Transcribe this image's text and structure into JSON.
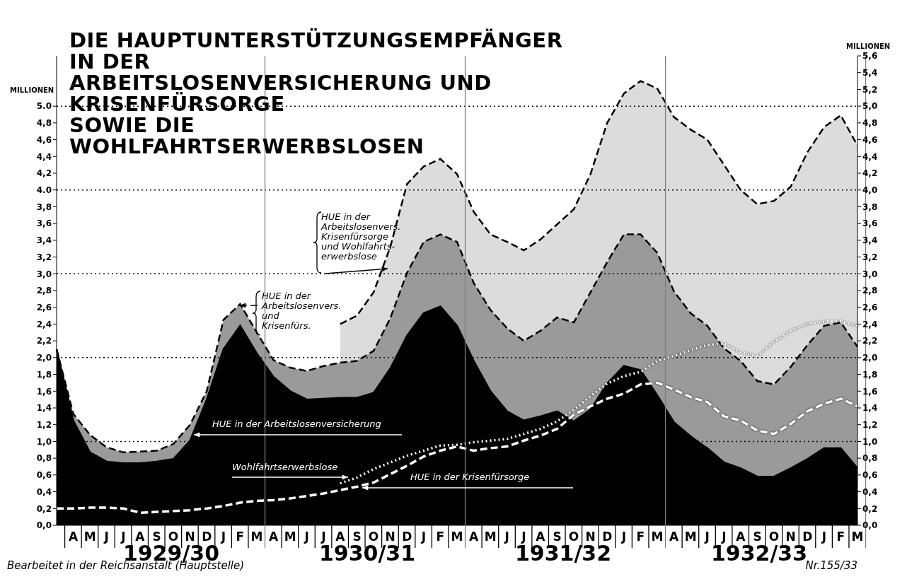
{
  "chart_data": {
    "type": "area",
    "title": "DIE HAUPTUNTERSTÜTZUNGSEMPFÄNGER\nIN DER\nARBEITSLOSENVERSICHERUNG UND\nKRISENFÜRSORGE\nSOWIE DIE\nWOHLFAHRTSERWERBSLOSEN",
    "ylabel": "MILLIONEN",
    "y2label": "MILLIONEN",
    "categories": [
      null,
      "A",
      "M",
      "J",
      "J",
      "A",
      "S",
      "O",
      "N",
      "D",
      "J",
      "F",
      "M",
      "A",
      "M",
      "J",
      "J",
      "A",
      "S",
      "O",
      "N",
      "D",
      "J",
      "F",
      "M",
      "A",
      "M",
      "J",
      "J",
      "A",
      "S",
      "O",
      "N",
      "D",
      "J",
      "F",
      "M",
      "A",
      "M",
      "J",
      "J",
      "A",
      "S",
      "O",
      "N",
      "D",
      "J",
      "F",
      "M"
    ],
    "series": [
      {
        "name": "HUE in der Arbeitslosenvers. Krisenfürsorge und Wohlfahrts-erwerbslose",
        "color": "#dcdcdc",
        "line_style": "dashed",
        "values": [
          null,
          null,
          null,
          null,
          null,
          null,
          null,
          null,
          null,
          null,
          null,
          null,
          null,
          null,
          null,
          null,
          null,
          2.4,
          2.5,
          2.78,
          3.32,
          4.07,
          4.28,
          4.37,
          4.19,
          3.74,
          3.47,
          3.38,
          3.28,
          3.41,
          3.59,
          3.77,
          4.19,
          4.8,
          5.15,
          5.3,
          5.21,
          4.87,
          4.72,
          4.6,
          4.3,
          4.0,
          3.83,
          3.87,
          4.04,
          4.45,
          4.75,
          4.89,
          4.53
        ]
      },
      {
        "name": "HUE in der Arbeitslosenvers. und Krisenfürs.",
        "color": "#9a9a9a",
        "line_style": "dashed",
        "values": [
          2.1,
          1.33,
          1.08,
          0.93,
          0.87,
          0.88,
          0.89,
          0.97,
          1.2,
          1.6,
          2.45,
          2.64,
          2.3,
          1.97,
          1.88,
          1.84,
          1.9,
          1.94,
          1.96,
          2.08,
          2.47,
          3.01,
          3.38,
          3.47,
          3.38,
          2.89,
          2.57,
          2.35,
          2.2,
          2.32,
          2.48,
          2.42,
          2.78,
          3.14,
          3.47,
          3.47,
          3.25,
          2.79,
          2.53,
          2.38,
          2.11,
          1.96,
          1.72,
          1.68,
          1.89,
          2.15,
          2.38,
          2.42,
          2.13
        ]
      },
      {
        "name": "HUE in der Arbeitslosenversicherung",
        "color": "#000000",
        "line_style": "solid",
        "values": [
          2.1,
          1.25,
          0.87,
          0.76,
          0.74,
          0.74,
          0.76,
          0.79,
          1.01,
          1.5,
          2.1,
          2.38,
          2.05,
          1.77,
          1.6,
          1.5,
          1.51,
          1.52,
          1.52,
          1.58,
          1.87,
          2.26,
          2.53,
          2.61,
          2.38,
          1.96,
          1.6,
          1.36,
          1.25,
          1.3,
          1.36,
          1.24,
          1.38,
          1.69,
          1.9,
          1.85,
          1.55,
          1.23,
          1.06,
          0.92,
          0.75,
          0.68,
          0.58,
          0.58,
          0.68,
          0.79,
          0.92,
          0.92,
          0.68
        ]
      },
      {
        "name": "Wohlfahrtserwerbslose",
        "type": "line",
        "color": "#ffffff",
        "line_style": "dotted",
        "values": [
          null,
          null,
          null,
          null,
          null,
          null,
          null,
          null,
          null,
          null,
          null,
          null,
          null,
          null,
          null,
          null,
          null,
          0.5,
          0.57,
          0.67,
          0.75,
          0.83,
          0.89,
          0.95,
          0.96,
          0.99,
          1.01,
          1.03,
          1.09,
          1.15,
          1.24,
          1.38,
          1.54,
          1.69,
          1.78,
          1.83,
          1.96,
          2.02,
          2.09,
          2.15,
          2.17,
          2.06,
          2.02,
          2.19,
          2.32,
          2.4,
          2.43,
          2.43,
          2.38
        ]
      },
      {
        "name": "HUE in der Krisenfürsorge",
        "type": "line",
        "color": "#ffffff",
        "line_style": "dashed",
        "values": [
          0.2,
          0.2,
          0.21,
          0.21,
          0.2,
          0.15,
          0.16,
          0.17,
          0.18,
          0.2,
          0.23,
          0.27,
          0.29,
          0.3,
          0.32,
          0.35,
          0.38,
          0.42,
          0.46,
          0.51,
          0.61,
          0.71,
          0.82,
          0.89,
          0.94,
          0.89,
          0.92,
          0.94,
          1.01,
          1.07,
          1.15,
          1.32,
          1.42,
          1.51,
          1.57,
          1.68,
          1.7,
          1.62,
          1.53,
          1.47,
          1.3,
          1.25,
          1.13,
          1.09,
          1.21,
          1.36,
          1.45,
          1.51,
          1.42
        ]
      }
    ],
    "marker": "none",
    "ylim": [
      0,
      5.6
    ],
    "yticks": [
      {
        "value": 0,
        "label": "0,0"
      },
      {
        "value": 0.2,
        "label": "0,2"
      },
      {
        "value": 0.4,
        "label": "0,4"
      },
      {
        "value": 0.6,
        "label": "0,6"
      },
      {
        "value": 0.8,
        "label": "0,8"
      },
      {
        "value": 1,
        "label": "1,0"
      },
      {
        "value": 1.2,
        "label": "1,2"
      },
      {
        "value": 1.4,
        "label": "1,4"
      },
      {
        "value": 1.6,
        "label": "1,6"
      },
      {
        "value": 1.8,
        "label": "1,8"
      },
      {
        "value": 2,
        "label": "2,0"
      },
      {
        "value": 2.2,
        "label": "2,2"
      },
      {
        "value": 2.4,
        "label": "2,4"
      },
      {
        "value": 2.6,
        "label": "2,6"
      },
      {
        "value": 2.8,
        "label": "2,8"
      },
      {
        "value": 3,
        "label": "3,0"
      },
      {
        "value": 3.2,
        "label": "3,2"
      },
      {
        "value": 3.4,
        "label": "3,4"
      },
      {
        "value": 3.6,
        "label": "3,6"
      },
      {
        "value": 3.8,
        "label": "3,8"
      },
      {
        "value": 4,
        "label": "4.0"
      },
      {
        "value": 4.2,
        "label": "4,2"
      },
      {
        "value": 4.4,
        "label": "4,4"
      },
      {
        "value": 4.6,
        "label": "4,6"
      },
      {
        "value": 4.8,
        "label": "4,8"
      },
      {
        "value": 5,
        "label": "5.0"
      }
    ],
    "y2lim": [
      0,
      5.6
    ],
    "y2ticks": [
      {
        "value": 0,
        "label": "0,0"
      },
      {
        "value": 0.2,
        "label": "0,2"
      },
      {
        "value": 0.4,
        "label": "0,4"
      },
      {
        "value": 0.6,
        "label": "0,6"
      },
      {
        "value": 0.8,
        "label": "0,8"
      },
      {
        "value": 1,
        "label": "1,0"
      },
      {
        "value": 1.2,
        "label": "1,2"
      },
      {
        "value": 1.4,
        "label": "1,4"
      },
      {
        "value": 1.6,
        "label": "1,6"
      },
      {
        "value": 1.8,
        "label": "1,8"
      },
      {
        "value": 2,
        "label": "2,0"
      },
      {
        "value": 2.2,
        "label": "2,2"
      },
      {
        "value": 2.4,
        "label": "2,4"
      },
      {
        "value": 2.6,
        "label": "2,6"
      },
      {
        "value": 2.8,
        "label": "2,8"
      },
      {
        "value": 3,
        "label": "3,0"
      },
      {
        "value": 3.2,
        "label": "3,2"
      },
      {
        "value": 3.4,
        "label": "3,4"
      },
      {
        "value": 3.6,
        "label": "3,6"
      },
      {
        "value": 3.8,
        "label": "3,8"
      },
      {
        "value": 4,
        "label": "4,0"
      },
      {
        "value": 4.2,
        "label": "4,2"
      },
      {
        "value": 4.4,
        "label": "4,4"
      },
      {
        "value": 4.6,
        "label": "4,6"
      },
      {
        "value": 4.8,
        "label": "4,8"
      },
      {
        "value": 5,
        "label": "5,0"
      },
      {
        "value": 5.2,
        "label": "5,2"
      },
      {
        "value": 5.4,
        "label": "5,4"
      },
      {
        "value": 5.6,
        "label": "5,6"
      }
    ],
    "ref_lines": [
      {
        "axis": "y",
        "value": 1,
        "color": "#000000",
        "line_style": "dotted"
      },
      {
        "axis": "y",
        "value": 2,
        "color": "#000000",
        "line_style": "dotted"
      },
      {
        "axis": "y",
        "value": 3,
        "color": "#000000",
        "line_style": "dotted"
      },
      {
        "axis": "y",
        "value": 4,
        "color": "#000000",
        "line_style": "dotted"
      },
      {
        "axis": "y",
        "value": 5,
        "color": "#000000",
        "line_style": "dotted"
      }
    ],
    "annotations": [
      "1929/30",
      "1930/31",
      "1931/32",
      "1932/33",
      "Bearbeitet in der Reichsanstalt (Hauptstelle)",
      "Nr.155/33"
    ]
  }
}
